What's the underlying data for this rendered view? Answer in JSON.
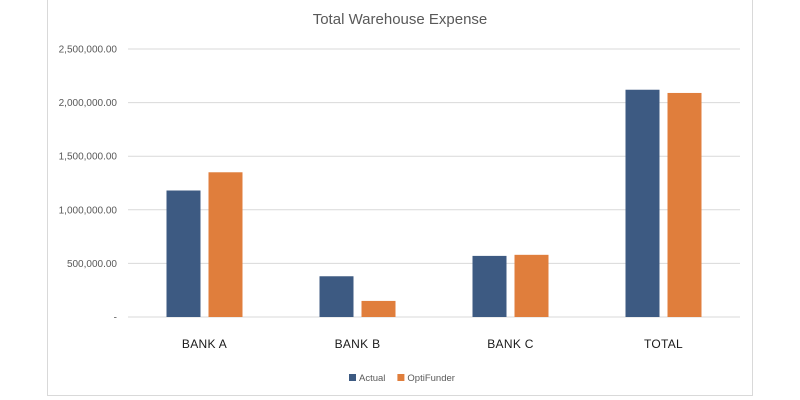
{
  "chart_data": {
    "type": "bar",
    "title": "Total Warehouse Expense",
    "categories": [
      "BANK A",
      "BANK B",
      "BANK C",
      "TOTAL"
    ],
    "series": [
      {
        "name": "Actual",
        "color": "#3d5a82",
        "values": [
          1180000,
          380000,
          570000,
          2120000
        ]
      },
      {
        "name": "OptiFunder",
        "color": "#e07e3c",
        "values": [
          1350000,
          150000,
          580000,
          2090000
        ]
      }
    ],
    "ylim": [
      0,
      2500000
    ],
    "yticks": [
      0,
      500000,
      1000000,
      1500000,
      2000000,
      2500000
    ],
    "ytick_labels": [
      "-",
      "500,000.00",
      "1,000,000.00",
      "1,500,000.00",
      "2,000,000.00",
      "2,500,000.00"
    ],
    "grid": true,
    "legend_position": "bottom"
  }
}
